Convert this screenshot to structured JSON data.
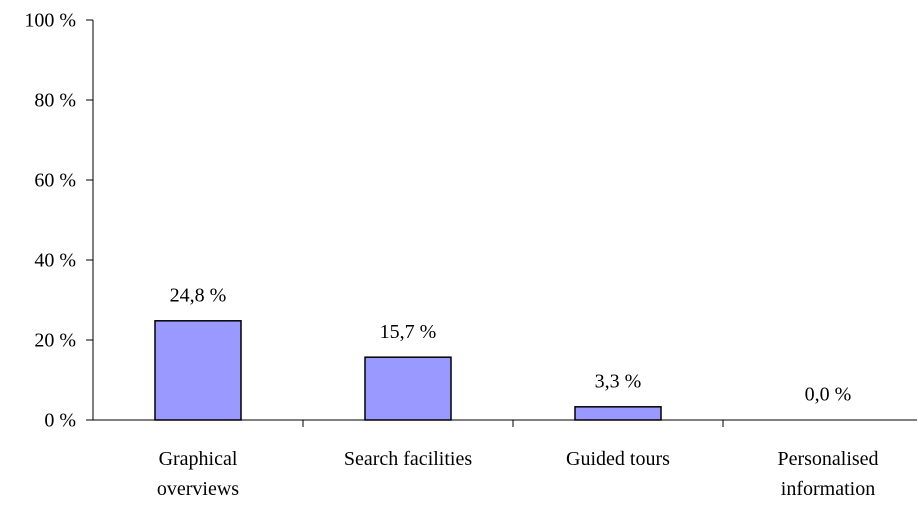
{
  "chart_data": {
    "type": "bar",
    "categories": [
      "Graphical\noverviews",
      "Search facilities",
      "Guided tours",
      "Personalised\ninformation"
    ],
    "values": [
      24.8,
      15.7,
      3.3,
      0.0
    ],
    "value_labels": [
      "24,8 %",
      "15,7 %",
      "3,3 %",
      "0,0 %"
    ],
    "color": "#9999ff",
    "ylim": [
      0,
      100
    ],
    "yticks": [
      {
        "value": 0,
        "label": "0 %"
      },
      {
        "value": 20,
        "label": "20 %"
      },
      {
        "value": 40,
        "label": "40 %"
      },
      {
        "value": 60,
        "label": "60 %"
      },
      {
        "value": 80,
        "label": "80 %"
      },
      {
        "value": 100,
        "label": "100 %"
      }
    ],
    "grid": false
  }
}
